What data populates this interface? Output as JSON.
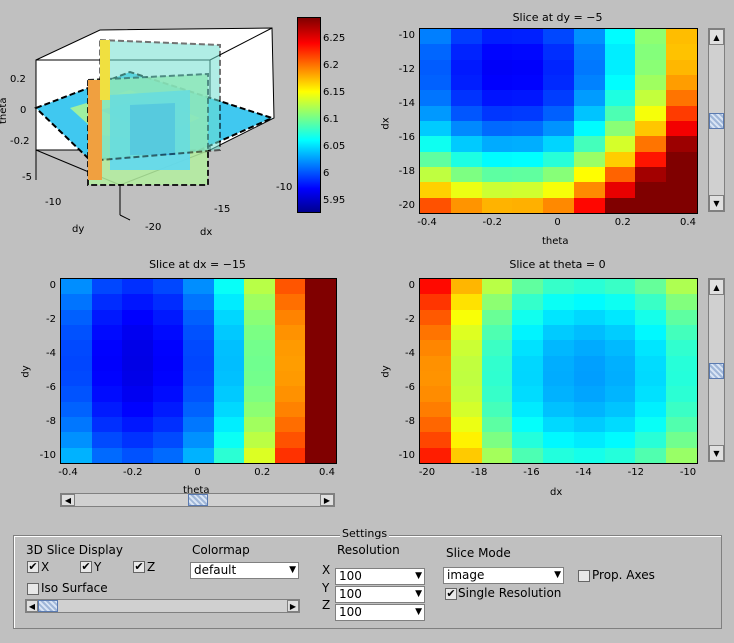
{
  "view3d": {
    "ztick_labels": [
      "0.2",
      "0",
      "-0.2"
    ],
    "zlabel": "theta",
    "xlabel": "dx",
    "ylabel": "dy",
    "dy_ticks": [
      "-5",
      "-10"
    ],
    "dx_ticks": [
      "-20",
      "-15",
      "-10"
    ]
  },
  "colorbar": {
    "ticks": [
      "6.25",
      "6.2",
      "6.15",
      "6.1",
      "6.05",
      "6",
      "5.95"
    ]
  },
  "plots": [
    {
      "title": "Slice at dy = −5",
      "xlabel": "theta",
      "ylabel": "dx",
      "xticks": [
        "-0.4",
        "-0.2",
        "0",
        "0.2",
        "0.4"
      ],
      "yticks": [
        "-10",
        "-12",
        "-14",
        "-16",
        "-18",
        "-20"
      ]
    },
    {
      "title": "Slice at dx = −15",
      "xlabel": "theta",
      "ylabel": "dy",
      "xticks": [
        "-0.4",
        "-0.2",
        "0",
        "0.2",
        "0.4"
      ],
      "yticks": [
        "0",
        "-2",
        "-4",
        "-6",
        "-8",
        "-10"
      ]
    },
    {
      "title": "Slice at theta = 0",
      "xlabel": "dx",
      "ylabel": "dy",
      "xticks": [
        "-20",
        "-18",
        "-16",
        "-14",
        "-12",
        "-10"
      ],
      "yticks": [
        "0",
        "-2",
        "-4",
        "-6",
        "-8",
        "-10"
      ]
    }
  ],
  "settings": {
    "title": "Settings",
    "slice_display_label": "3D Slice Display",
    "x_label": "X",
    "y_label": "Y",
    "z_label": "Z",
    "x_checked": true,
    "y_checked": true,
    "z_checked": true,
    "iso_label": "Iso Surface",
    "iso_checked": false,
    "colormap_label": "Colormap",
    "colormap_value": "default",
    "resolution_label": "Resolution",
    "res_x_label": "X",
    "res_y_label": "Y",
    "res_z_label": "Z",
    "res_x_value": "100",
    "res_y_value": "100",
    "res_z_value": "100",
    "slice_mode_label": "Slice Mode",
    "slice_mode_value": "image",
    "prop_axes_label": "Prop. Axes",
    "prop_axes_checked": false,
    "single_res_label": "Single Resolution",
    "single_res_checked": true
  },
  "sliders": {
    "dy_slice_level": 0.5,
    "dx_slice_level": 0.5,
    "theta_slice_level": 0.5,
    "iso_level": 0.0
  }
}
